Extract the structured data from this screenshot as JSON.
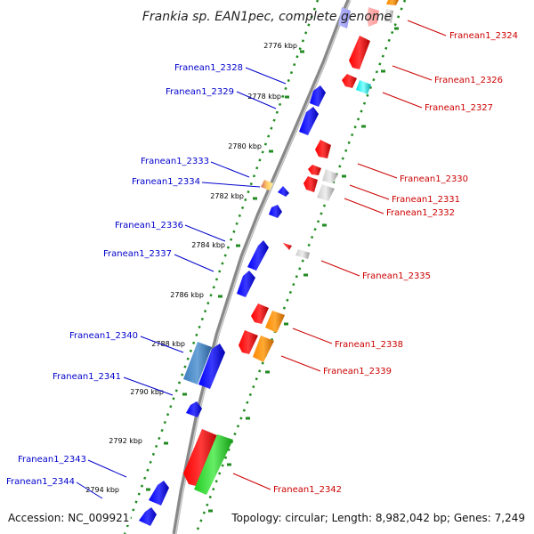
{
  "title": "Frankia sp. EAN1pec, complete genome",
  "footer": {
    "accession": "Accession: NC_009921",
    "summary": "Topology: circular; Length: 8,982,042 bp; Genes: 7,249"
  },
  "colors": {
    "forward_label": "#0000cc",
    "reverse_label": "#cc0000",
    "tick": "#228b22",
    "backbone": "#888888"
  },
  "kbp_ticks": [
    "2776 kbp",
    "2778 kbp",
    "2780 kbp",
    "2782 kbp",
    "2784 kbp",
    "2786 kbp",
    "2788 kbp",
    "2790 kbp",
    "2792 kbp",
    "2794 kbp"
  ],
  "forward_genes": [
    "Franean1_2328",
    "Franean1_2329",
    "Franean1_2333",
    "Franean1_2334",
    "Franean1_2336",
    "Franean1_2337",
    "Franean1_2340",
    "Franean1_2341",
    "Franean1_2343",
    "Franean1_2344"
  ],
  "reverse_genes": [
    "Franean1_2324",
    "Franean1_2326",
    "Franean1_2327",
    "Franean1_2330",
    "Franean1_2331",
    "Franean1_2332",
    "Franean1_2335",
    "Franean1_2338",
    "Franean1_2339",
    "Franean1_2342"
  ]
}
